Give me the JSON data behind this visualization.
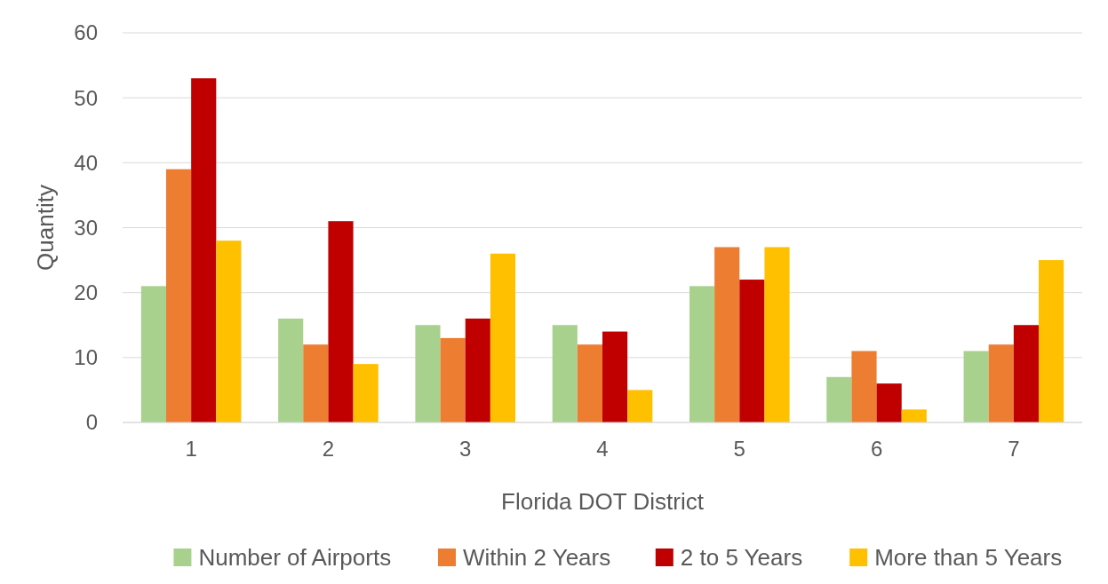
{
  "chart_data": {
    "type": "bar",
    "xlabel": "Florida DOT District",
    "ylabel": "Quantity",
    "categories": [
      "1",
      "2",
      "3",
      "4",
      "5",
      "6",
      "7"
    ],
    "series": [
      {
        "name": "Number of Airports",
        "color": "#a9d18e",
        "values": [
          21,
          16,
          15,
          15,
          21,
          7,
          11
        ]
      },
      {
        "name": "Within 2 Years",
        "color": "#ed7d31",
        "values": [
          39,
          12,
          13,
          12,
          27,
          11,
          12
        ]
      },
      {
        "name": "2 to 5 Years",
        "color": "#c00000",
        "values": [
          53,
          31,
          16,
          14,
          22,
          6,
          15
        ]
      },
      {
        "name": "More than 5 Years",
        "color": "#ffc000",
        "values": [
          28,
          9,
          26,
          5,
          27,
          2,
          25
        ]
      }
    ],
    "ylim": [
      0,
      60
    ],
    "yticks": [
      0,
      10,
      20,
      30,
      40,
      50,
      60
    ],
    "grid": "y",
    "legend": "bottom"
  }
}
